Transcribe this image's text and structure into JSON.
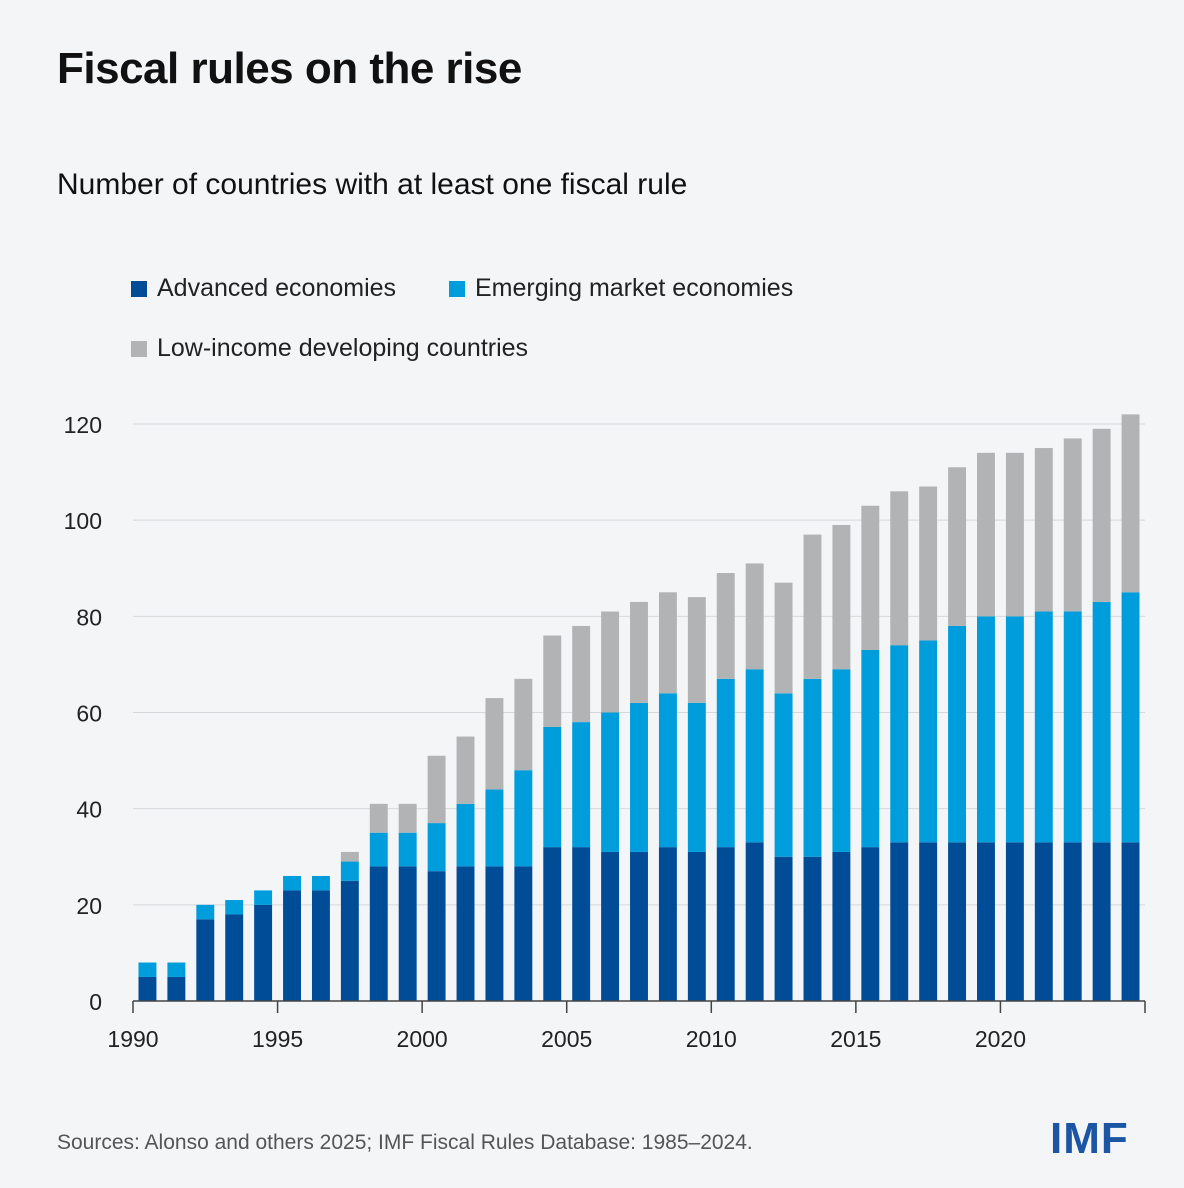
{
  "title": "Fiscal rules on the rise",
  "subtitle": "Number of countries with at least one fiscal rule",
  "legend": [
    {
      "label": "Advanced economies",
      "color": "#004c97"
    },
    {
      "label": "Emerging market economies",
      "color": "#009ddc"
    },
    {
      "label": "Low-income developing countries",
      "color": "#b1b3b5"
    }
  ],
  "source": "Sources: Alonso and others 2025; IMF Fiscal Rules Database: 1985–2024.",
  "logo": "IMF",
  "chart_data": {
    "type": "bar",
    "stacked": true,
    "title": "Fiscal rules on the rise",
    "subtitle": "Number of countries with at least one fiscal rule",
    "xlabel": "",
    "ylabel": "",
    "ylim": [
      0,
      120
    ],
    "yticks": [
      0,
      20,
      40,
      60,
      80,
      100,
      120
    ],
    "xticks": [
      "1990",
      "1995",
      "2000",
      "2005",
      "2010",
      "2015",
      "2020"
    ],
    "grid": true,
    "legend_position": "top-left",
    "categories": [
      "1990",
      "1991",
      "1992",
      "1993",
      "1994",
      "1995",
      "1996",
      "1997",
      "1998",
      "1999",
      "2000",
      "2001",
      "2002",
      "2003",
      "2004",
      "2005",
      "2006",
      "2007",
      "2008",
      "2009",
      "2010",
      "2011",
      "2012",
      "2013",
      "2014",
      "2015",
      "2016",
      "2017",
      "2018",
      "2019",
      "2020",
      "2021",
      "2022",
      "2023",
      "2024"
    ],
    "series": [
      {
        "name": "Advanced economies",
        "color": "#004c97",
        "values": [
          5,
          5,
          17,
          18,
          20,
          23,
          23,
          25,
          28,
          28,
          27,
          28,
          28,
          28,
          32,
          32,
          31,
          31,
          32,
          31,
          32,
          33,
          30,
          30,
          31,
          32,
          33,
          33,
          33,
          33,
          33,
          33,
          33,
          33,
          33
        ]
      },
      {
        "name": "Emerging market economies",
        "color": "#009ddc",
        "values": [
          3,
          3,
          3,
          3,
          3,
          3,
          3,
          4,
          7,
          7,
          10,
          13,
          16,
          20,
          25,
          26,
          29,
          31,
          32,
          31,
          35,
          36,
          34,
          37,
          38,
          41,
          41,
          42,
          45,
          47,
          47,
          48,
          48,
          50,
          52
        ]
      },
      {
        "name": "Low-income developing countries",
        "color": "#b1b3b5",
        "values": [
          0,
          0,
          0,
          0,
          0,
          0,
          0,
          2,
          6,
          6,
          14,
          14,
          19,
          19,
          19,
          20,
          21,
          21,
          21,
          22,
          22,
          22,
          23,
          30,
          30,
          30,
          32,
          32,
          33,
          34,
          34,
          34,
          36,
          36,
          37
        ]
      }
    ]
  }
}
